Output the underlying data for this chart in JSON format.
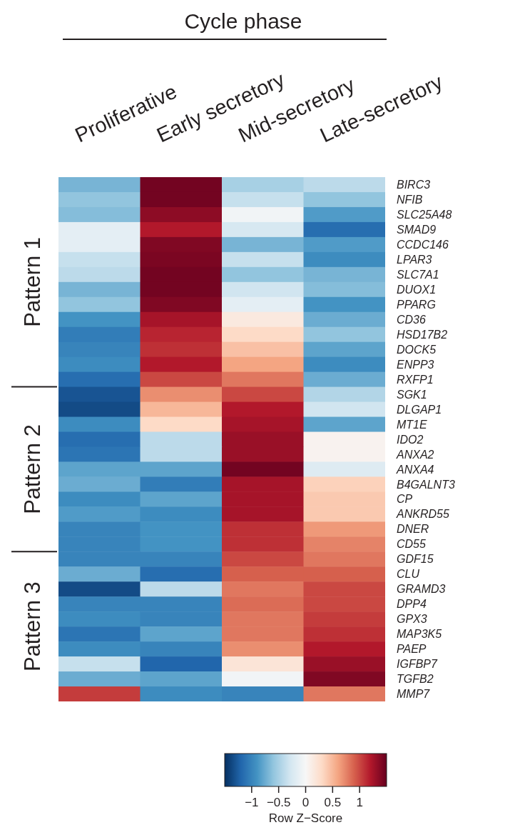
{
  "chart_data": {
    "type": "heatmap",
    "xlabel": "Cycle phase",
    "clabel": "Row Z−Score",
    "categories": [
      "Proliferative",
      "Early secretory",
      "Mid-secretory",
      "Late-secretory"
    ],
    "y_categories": [
      "BIRC3",
      "NFIB",
      "SLC25A48",
      "SMAD9",
      "CCDC146",
      "LPAR3",
      "SLC7A1",
      "DUOX1",
      "PPARG",
      "CD36",
      "HSD17B2",
      "DOCK5",
      "ENPP3",
      "RXFP1",
      "SGK1",
      "DLGAP1",
      "MT1E",
      "IDO2",
      "ANXA2",
      "ANXA4",
      "B4GALNT3",
      "CP",
      "ANKRD55",
      "DNER",
      "CD55",
      "GDF15",
      "CLU",
      "GRAMD3",
      "DPP4",
      "GPX3",
      "MAP3K5",
      "PAEP",
      "IGFBP7",
      "TGFB2",
      "MMP7"
    ],
    "cells": [
      [
        -0.7,
        1.45,
        -0.5,
        -0.4
      ],
      [
        -0.6,
        1.45,
        -0.35,
        -0.6
      ],
      [
        -0.65,
        1.35,
        -0.05,
        -0.85
      ],
      [
        -0.15,
        1.2,
        -0.25,
        -1.15
      ],
      [
        -0.15,
        1.4,
        -0.7,
        -0.85
      ],
      [
        -0.35,
        1.42,
        -0.35,
        -0.95
      ],
      [
        -0.4,
        1.45,
        -0.6,
        -0.7
      ],
      [
        -0.7,
        1.45,
        -0.3,
        -0.65
      ],
      [
        -0.6,
        1.4,
        -0.15,
        -0.9
      ],
      [
        -0.9,
        1.25,
        0.15,
        -0.75
      ],
      [
        -1.05,
        1.15,
        0.3,
        -0.6
      ],
      [
        -1.0,
        1.1,
        0.45,
        -0.8
      ],
      [
        -0.95,
        1.2,
        0.6,
        -0.95
      ],
      [
        -1.15,
        1.0,
        0.8,
        -0.75
      ],
      [
        -1.3,
        0.7,
        1.0,
        -0.45
      ],
      [
        -1.35,
        0.5,
        1.2,
        -0.3
      ],
      [
        -0.95,
        0.3,
        1.25,
        -0.8
      ],
      [
        -1.15,
        -0.4,
        1.3,
        0.05
      ],
      [
        -1.1,
        -0.4,
        1.3,
        0.05
      ],
      [
        -0.8,
        -0.8,
        1.45,
        -0.2
      ],
      [
        -0.75,
        -1.05,
        1.25,
        0.35
      ],
      [
        -0.95,
        -0.8,
        1.25,
        0.4
      ],
      [
        -0.85,
        -0.95,
        1.25,
        0.4
      ],
      [
        -1.0,
        -0.9,
        1.1,
        0.65
      ],
      [
        -1.0,
        -0.9,
        1.1,
        0.75
      ],
      [
        -1.0,
        -1.0,
        1.0,
        0.8
      ],
      [
        -0.75,
        -1.15,
        0.9,
        0.9
      ],
      [
        -1.35,
        -0.4,
        0.8,
        1.0
      ],
      [
        -1.0,
        -1.0,
        0.85,
        1.0
      ],
      [
        -0.95,
        -1.0,
        0.8,
        1.05
      ],
      [
        -1.1,
        -0.8,
        0.8,
        1.1
      ],
      [
        -0.95,
        -1.0,
        0.7,
        1.2
      ],
      [
        -0.35,
        -1.2,
        0.2,
        1.3
      ],
      [
        -0.75,
        -0.8,
        -0.05,
        1.4
      ],
      [
        1.05,
        -0.95,
        -1.0,
        0.8
      ]
    ],
    "clim": [
      -1.5,
      1.5
    ],
    "cticks": [
      {
        "value": -1,
        "label": "−1"
      },
      {
        "value": -0.5,
        "label": "−0.5"
      },
      0,
      0.5,
      1
    ],
    "annotations": [
      "Pattern 1",
      "Pattern 2",
      "Pattern 3"
    ]
  }
}
